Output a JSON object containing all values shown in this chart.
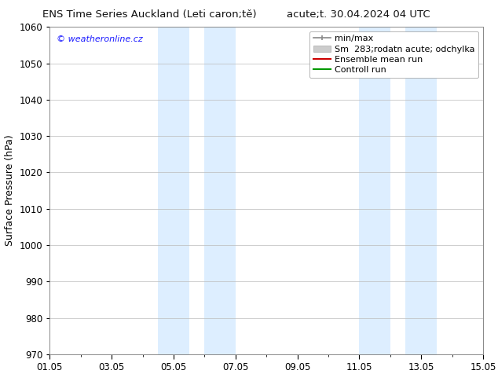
{
  "title_left": "ENS Time Series Auckland (Leti caron;tě)",
  "title_right": "acute;t. 30.04.2024 04 UTC",
  "ylabel": "Surface Pressure (hPa)",
  "ylim": [
    970,
    1060
  ],
  "yticks": [
    970,
    980,
    990,
    1000,
    1010,
    1020,
    1030,
    1040,
    1050,
    1060
  ],
  "xtick_labels": [
    "01.05",
    "03.05",
    "05.05",
    "07.05",
    "09.05",
    "11.05",
    "13.05",
    "15.05"
  ],
  "xtick_positions": [
    0,
    2,
    4,
    6,
    8,
    10,
    12,
    14
  ],
  "shade_bands": [
    {
      "start": 3.5,
      "end": 4.5
    },
    {
      "start": 5.0,
      "end": 6.0
    },
    {
      "start": 10.0,
      "end": 11.0
    },
    {
      "start": 11.5,
      "end": 12.5
    }
  ],
  "shade_color": "#ddeeff",
  "watermark_text": "© weatheronline.cz",
  "watermark_color": "#1a1aff",
  "legend_items": [
    {
      "label": "min/max",
      "color": "#888888",
      "lw": 1.2
    },
    {
      "label": "Sm  283;rodatn acute; odchylka",
      "color": "#cccccc",
      "lw": 8
    },
    {
      "label": "Ensemble mean run",
      "color": "#cc0000",
      "lw": 1.5
    },
    {
      "label": "Controll run",
      "color": "#009900",
      "lw": 1.5
    }
  ],
  "bg_color": "#ffffff",
  "plot_bg_color": "#ffffff",
  "grid_color": "#bbbbbb",
  "title_fontsize": 9.5,
  "ylabel_fontsize": 9,
  "tick_fontsize": 8.5,
  "legend_fontsize": 8
}
